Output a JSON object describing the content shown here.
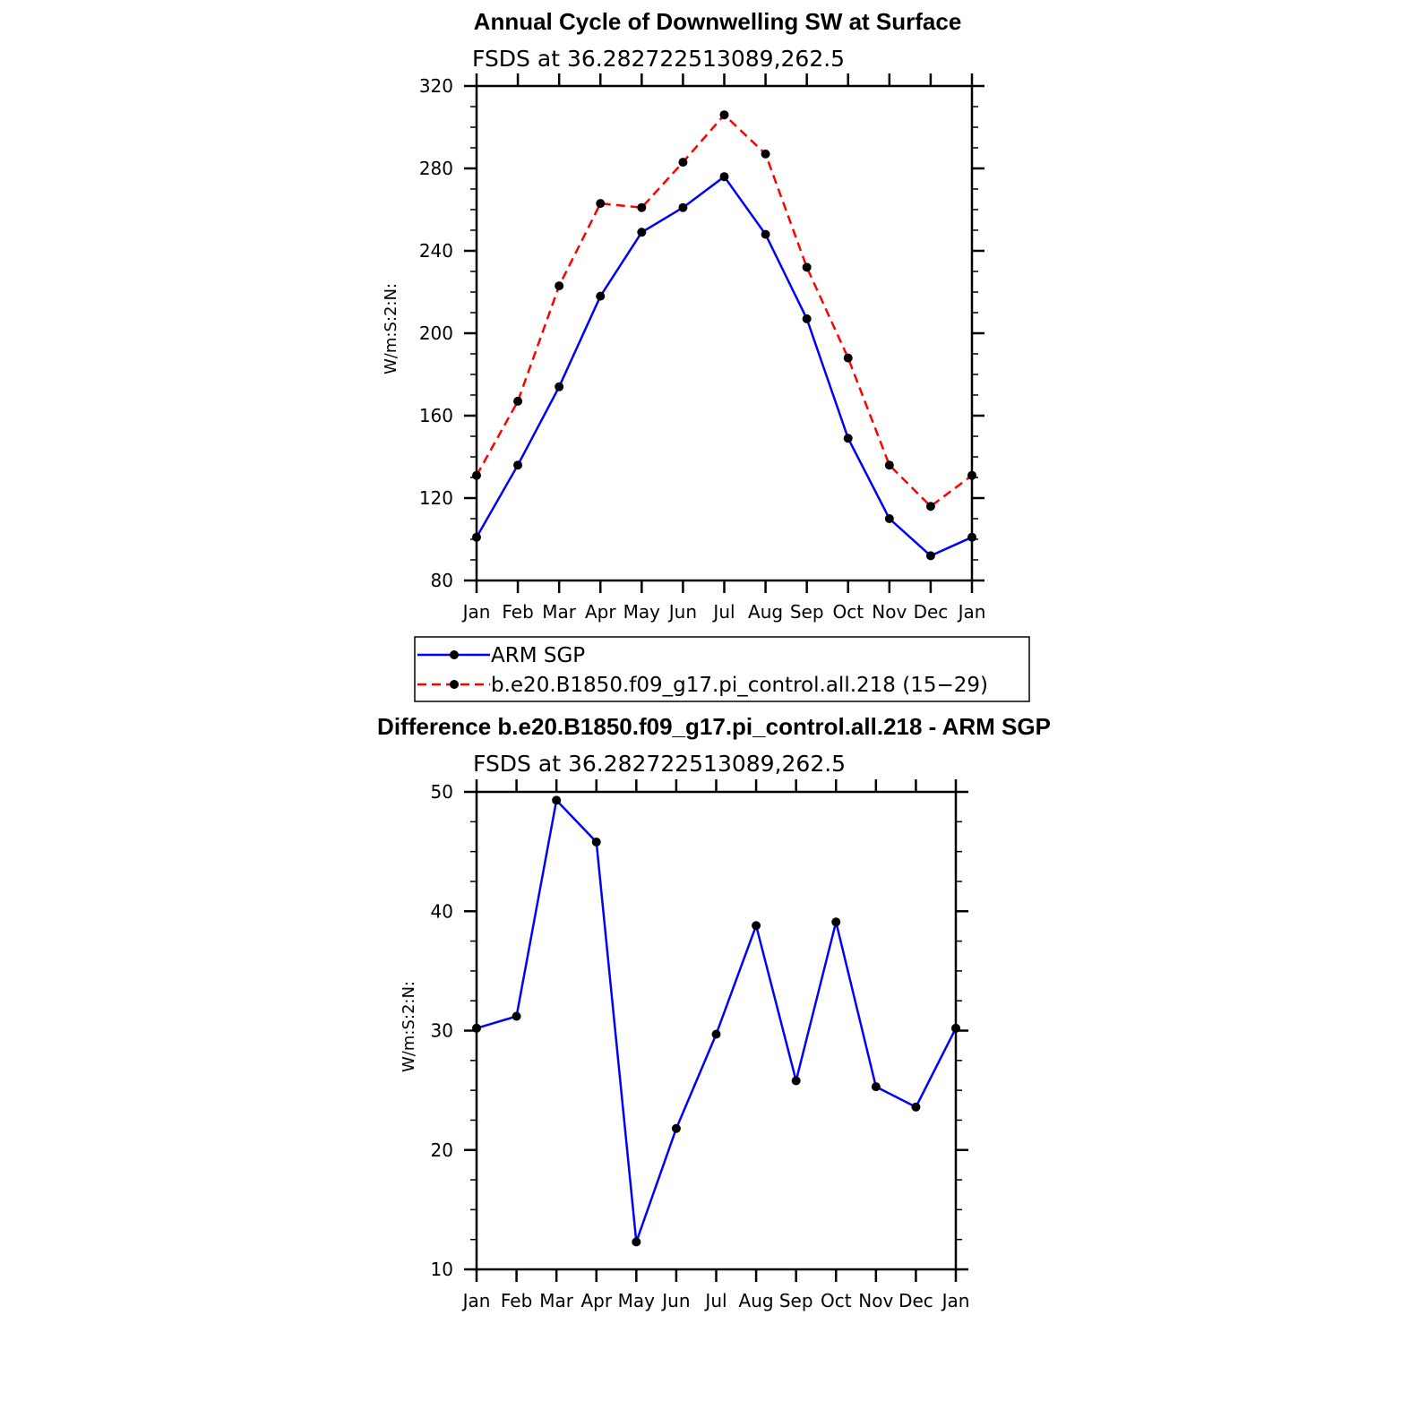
{
  "colors": {
    "obs": "#0000ff",
    "model": "#ff0000",
    "marker": "#000000",
    "axis": "#000000"
  },
  "chart_data": [
    {
      "type": "line",
      "title": "Annual Cycle of Downwelling SW at Surface",
      "subtitle": "FSDS at 36.282722513089,262.5",
      "xlabel": "",
      "ylabel": "W/m:S:2:N:",
      "categories": [
        "Jan",
        "Feb",
        "Mar",
        "Apr",
        "May",
        "Jun",
        "Jul",
        "Aug",
        "Sep",
        "Oct",
        "Nov",
        "Dec",
        "Jan"
      ],
      "ylim": [
        80,
        320
      ],
      "yticks": [
        "80",
        "120",
        "160",
        "200",
        "240",
        "280",
        "320"
      ],
      "grid": false,
      "legend": "below",
      "series": [
        {
          "name": "ARM SGP",
          "style": "solid",
          "values": [
            101,
            136,
            174,
            218,
            249,
            261,
            276,
            248,
            207,
            149,
            110,
            92,
            101
          ]
        },
        {
          "name": "b.e20.B1850.f09_g17.pi_control.all.218 (15−29)",
          "style": "dashed",
          "values": [
            131,
            167,
            223,
            263,
            261,
            283,
            306,
            287,
            232,
            188,
            136,
            116,
            131
          ]
        }
      ]
    },
    {
      "type": "line",
      "title": "Difference b.e20.B1850.f09_g17.pi_control.all.218 - ARM SGP",
      "subtitle": "FSDS at 36.282722513089,262.5",
      "xlabel": "",
      "ylabel": "W/m:S:2:N:",
      "categories": [
        "Jan",
        "Feb",
        "Mar",
        "Apr",
        "May",
        "Jun",
        "Jul",
        "Aug",
        "Sep",
        "Oct",
        "Nov",
        "Dec",
        "Jan"
      ],
      "ylim": [
        10,
        50
      ],
      "yticks": [
        "10",
        "20",
        "30",
        "40",
        "50"
      ],
      "grid": false,
      "series": [
        {
          "style": "solid",
          "values": [
            30.2,
            31.2,
            49.3,
            45.8,
            12.3,
            21.8,
            29.7,
            38.8,
            25.8,
            39.1,
            25.3,
            23.6,
            30.2
          ]
        }
      ]
    }
  ]
}
